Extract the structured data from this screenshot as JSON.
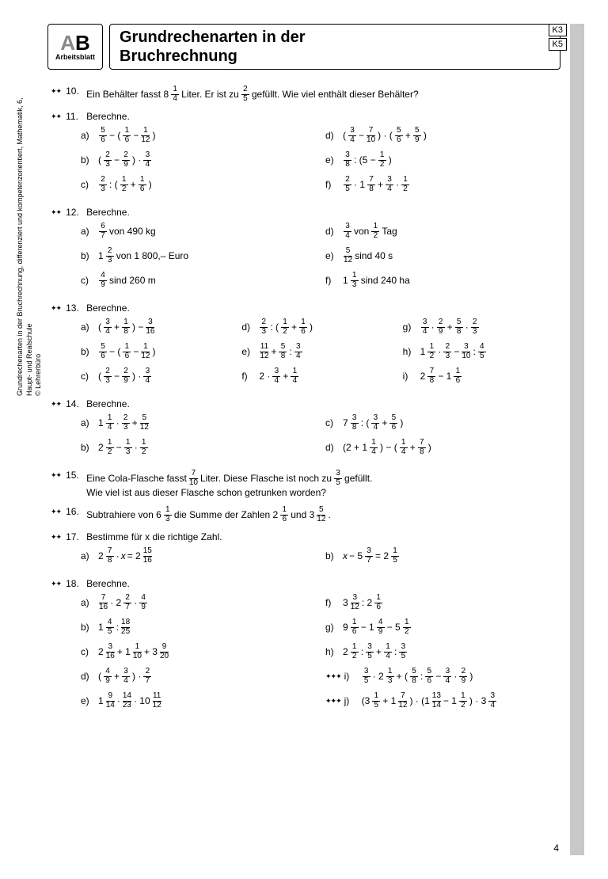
{
  "logo": {
    "ab": "AB",
    "sub": "Arbeitsblatt"
  },
  "title_l1": "Grundrechenarten in der",
  "title_l2": "Bruchrechnung",
  "k_labels": [
    "K3",
    "K5"
  ],
  "vertical_l1": "Grundrechenarten in der Bruchrechnung, differenziert und kompetenzorientiert, Mathematik, 6, Haupt- und Realschule",
  "vertical_l2": "© Lehrerbüro",
  "page_number": "4",
  "exercises": {
    "e10": {
      "num": "10.",
      "text_pre": "Ein Behälter fasst 8",
      "f1": [
        "1",
        "4"
      ],
      "text_mid": " Liter. Er ist zu ",
      "f2": [
        "2",
        "5"
      ],
      "text_post": " gefüllt. Wie viel enthält dieser Behälter?"
    },
    "e11": {
      "num": "11.",
      "title": "Berechne.",
      "items": [
        {
          "lbl": "a)",
          "html": "<span class='fr'><span class='n'>5</span><span class='d'>6</span></span> − ( <span class='fr'><span class='n'>1</span><span class='d'>6</span></span> − <span class='fr'><span class='n'>1</span><span class='d'>12</span></span> )"
        },
        {
          "lbl": "d)",
          "html": "( <span class='fr'><span class='n'>3</span><span class='d'>4</span></span> − <span class='fr'><span class='n'>7</span><span class='d'>10</span></span> ) · ( <span class='fr'><span class='n'>5</span><span class='d'>6</span></span> + <span class='fr'><span class='n'>5</span><span class='d'>9</span></span> )"
        },
        {
          "lbl": "b)",
          "html": "( <span class='fr'><span class='n'>2</span><span class='d'>3</span></span> − <span class='fr'><span class='n'>2</span><span class='d'>9</span></span> ) · <span class='fr'><span class='n'>3</span><span class='d'>4</span></span>"
        },
        {
          "lbl": "e)",
          "html": "<span class='fr'><span class='n'>3</span><span class='d'>8</span></span> : (5 − <span class='fr'><span class='n'>1</span><span class='d'>2</span></span> )"
        },
        {
          "lbl": "c)",
          "html": "<span class='fr'><span class='n'>2</span><span class='d'>3</span></span> : ( <span class='fr'><span class='n'>1</span><span class='d'>2</span></span> + <span class='fr'><span class='n'>1</span><span class='d'>6</span></span> )"
        },
        {
          "lbl": "f)",
          "html": "<span class='fr'><span class='n'>2</span><span class='d'>5</span></span> · 1<span class='fr'><span class='n'>7</span><span class='d'>8</span></span> + <span class='fr'><span class='n'>3</span><span class='d'>4</span></span> · <span class='fr'><span class='n'>1</span><span class='d'>2</span></span>"
        }
      ]
    },
    "e12": {
      "num": "12.",
      "title": "Berechne.",
      "items": [
        {
          "lbl": "a)",
          "html": "<span class='fr'><span class='n'>6</span><span class='d'>7</span></span> von 490 kg"
        },
        {
          "lbl": "d)",
          "html": "<span class='fr'><span class='n'>3</span><span class='d'>4</span></span> von <span class='fr'><span class='n'>1</span><span class='d'>2</span></span> Tag"
        },
        {
          "lbl": "b)",
          "html": "1<span class='fr'><span class='n'>2</span><span class='d'>3</span></span> von 1 800,– Euro"
        },
        {
          "lbl": "e)",
          "html": "<span class='fr'><span class='n'>5</span><span class='d'>12</span></span> sind 40 s"
        },
        {
          "lbl": "c)",
          "html": "<span class='fr'><span class='n'>4</span><span class='d'>9</span></span> sind 260 m"
        },
        {
          "lbl": "f)",
          "html": "1<span class='fr'><span class='n'>1</span><span class='d'>3</span></span> sind 240 ha"
        }
      ]
    },
    "e13": {
      "num": "13.",
      "title": "Berechne.",
      "items": [
        {
          "lbl": "a)",
          "html": "( <span class='fr'><span class='n'>3</span><span class='d'>4</span></span> + <span class='fr'><span class='n'>1</span><span class='d'>8</span></span> ) − <span class='fr'><span class='n'>3</span><span class='d'>16</span></span>"
        },
        {
          "lbl": "d)",
          "html": "<span class='fr'><span class='n'>2</span><span class='d'>3</span></span> : ( <span class='fr'><span class='n'>1</span><span class='d'>2</span></span> + <span class='fr'><span class='n'>1</span><span class='d'>6</span></span> )"
        },
        {
          "lbl": "g)",
          "html": "<span class='fr'><span class='n'>3</span><span class='d'>4</span></span> · <span class='fr'><span class='n'>2</span><span class='d'>9</span></span> + <span class='fr'><span class='n'>5</span><span class='d'>8</span></span> · <span class='fr'><span class='n'>2</span><span class='d'>3</span></span>"
        },
        {
          "lbl": "b)",
          "html": "<span class='fr'><span class='n'>5</span><span class='d'>6</span></span> − ( <span class='fr'><span class='n'>1</span><span class='d'>6</span></span> − <span class='fr'><span class='n'>1</span><span class='d'>12</span></span> )"
        },
        {
          "lbl": "e)",
          "html": "<span class='fr'><span class='n'>11</span><span class='d'>12</span></span> + <span class='fr'><span class='n'>5</span><span class='d'>8</span></span> : <span class='fr'><span class='n'>3</span><span class='d'>4</span></span>"
        },
        {
          "lbl": "h)",
          "html": "1<span class='fr'><span class='n'>1</span><span class='d'>2</span></span> · <span class='fr'><span class='n'>2</span><span class='d'>3</span></span> − <span class='fr'><span class='n'>3</span><span class='d'>10</span></span> : <span class='fr'><span class='n'>4</span><span class='d'>5</span></span>"
        },
        {
          "lbl": "c)",
          "html": "( <span class='fr'><span class='n'>2</span><span class='d'>3</span></span> − <span class='fr'><span class='n'>2</span><span class='d'>9</span></span> ) · <span class='fr'><span class='n'>3</span><span class='d'>4</span></span>"
        },
        {
          "lbl": "f)",
          "html": "2 · <span class='fr'><span class='n'>3</span><span class='d'>4</span></span> + <span class='fr'><span class='n'>1</span><span class='d'>4</span></span>"
        },
        {
          "lbl": "i)",
          "html": "2<span class='fr'><span class='n'>7</span><span class='d'>8</span></span> − 1<span class='fr'><span class='n'>1</span><span class='d'>6</span></span>"
        }
      ]
    },
    "e14": {
      "num": "14.",
      "title": "Berechne.",
      "items": [
        {
          "lbl": "a)",
          "html": "1<span class='fr'><span class='n'>1</span><span class='d'>4</span></span> · <span class='fr'><span class='n'>2</span><span class='d'>3</span></span> + <span class='fr'><span class='n'>5</span><span class='d'>12</span></span>"
        },
        {
          "lbl": "c)",
          "html": "7<span class='fr'><span class='n'>3</span><span class='d'>8</span></span> : ( <span class='fr'><span class='n'>3</span><span class='d'>4</span></span> + <span class='fr'><span class='n'>5</span><span class='d'>6</span></span> )"
        },
        {
          "lbl": "b)",
          "html": "2<span class='fr'><span class='n'>1</span><span class='d'>2</span></span> − <span class='fr'><span class='n'>1</span><span class='d'>3</span></span> · <span class='fr'><span class='n'>1</span><span class='d'>2</span></span>"
        },
        {
          "lbl": "d)",
          "html": "(2 + 1<span class='fr'><span class='n'>1</span><span class='d'>4</span></span> ) − ( <span class='fr'><span class='n'>1</span><span class='d'>4</span></span> + <span class='fr'><span class='n'>7</span><span class='d'>8</span></span> )"
        }
      ]
    },
    "e15": {
      "num": "15.",
      "text_pre": "Eine Cola-Flasche fasst ",
      "f1": [
        "7",
        "10"
      ],
      "text_mid": " Liter. Diese Flasche ist noch zu ",
      "f2": [
        "3",
        "5"
      ],
      "text_post": " gefüllt.",
      "line2": "Wie viel ist aus dieser Flasche schon getrunken worden?"
    },
    "e16": {
      "num": "16.",
      "text_pre": "Subtrahiere von 6",
      "f1": [
        "1",
        "3"
      ],
      "text_mid": " die Summe der Zahlen 2",
      "f2": [
        "1",
        "6"
      ],
      "text_mid2": " und 3",
      "f3": [
        "5",
        "12"
      ],
      "text_post": " ."
    },
    "e17": {
      "num": "17.",
      "title": "Bestimme für x die richtige Zahl.",
      "items": [
        {
          "lbl": "a)",
          "html": "2<span class='fr'><span class='n'>7</span><span class='d'>8</span></span> · <i>x</i> = 2<span class='fr'><span class='n'>15</span><span class='d'>16</span></span>"
        },
        {
          "lbl": "b)",
          "html": "<i>x</i> − 5<span class='fr'><span class='n'>3</span><span class='d'>7</span></span> = 2<span class='fr'><span class='n'>1</span><span class='d'>5</span></span>"
        }
      ]
    },
    "e18": {
      "num": "18.",
      "title": "Berechne.",
      "items": [
        {
          "lbl": "a)",
          "html": "<span class='fr'><span class='n'>7</span><span class='d'>16</span></span> · 2<span class='fr'><span class='n'>2</span><span class='d'>7</span></span> · <span class='fr'><span class='n'>4</span><span class='d'>9</span></span>"
        },
        {
          "lbl": "f)",
          "html": "3<span class='fr'><span class='n'>3</span><span class='d'>12</span></span> : 2<span class='fr'><span class='n'>1</span><span class='d'>6</span></span>"
        },
        {
          "lbl": "b)",
          "html": "1<span class='fr'><span class='n'>4</span><span class='d'>5</span></span> : <span class='fr'><span class='n'>18</span><span class='d'>25</span></span>"
        },
        {
          "lbl": "g)",
          "html": "9<span class='fr'><span class='n'>1</span><span class='d'>6</span></span> − 1<span class='fr'><span class='n'>4</span><span class='d'>9</span></span> − 5<span class='fr'><span class='n'>1</span><span class='d'>2</span></span>"
        },
        {
          "lbl": "c)",
          "html": "2<span class='fr'><span class='n'>3</span><span class='d'>16</span></span> + 1<span class='fr'><span class='n'>1</span><span class='d'>10</span></span> + 3<span class='fr'><span class='n'>9</span><span class='d'>20</span></span>"
        },
        {
          "lbl": "h)",
          "html": "2<span class='fr'><span class='n'>1</span><span class='d'>2</span></span> : <span class='fr'><span class='n'>3</span><span class='d'>5</span></span> + <span class='fr'><span class='n'>1</span><span class='d'>4</span></span> : <span class='fr'><span class='n'>3</span><span class='d'>5</span></span>"
        },
        {
          "lbl": "d)",
          "html": "( <span class='fr'><span class='n'>4</span><span class='d'>9</span></span> + <span class='fr'><span class='n'>3</span><span class='d'>4</span></span> ) · <span class='fr'><span class='n'>2</span><span class='d'>7</span></span>"
        },
        {
          "lbl": "i)",
          "hard": true,
          "html": "<span class='fr'><span class='n'>3</span><span class='d'>5</span></span> · 2<span class='fr'><span class='n'>1</span><span class='d'>3</span></span> + ( <span class='fr'><span class='n'>5</span><span class='d'>8</span></span> : <span class='fr'><span class='n'>5</span><span class='d'>6</span></span> − <span class='fr'><span class='n'>3</span><span class='d'>4</span></span> · <span class='fr'><span class='n'>2</span><span class='d'>9</span></span> )"
        },
        {
          "lbl": "e)",
          "html": "1<span class='fr'><span class='n'>9</span><span class='d'>14</span></span> · <span class='fr'><span class='n'>14</span><span class='d'>23</span></span> · 10<span class='fr'><span class='n'>11</span><span class='d'>12</span></span>"
        },
        {
          "lbl": "j)",
          "hard": true,
          "html": "(3<span class='fr'><span class='n'>1</span><span class='d'>5</span></span> + 1<span class='fr'><span class='n'>7</span><span class='d'>12</span></span> ) · (1<span class='fr'><span class='n'>13</span><span class='d'>14</span></span> − 1<span class='fr'><span class='n'>1</span><span class='d'>2</span></span> ) · 3<span class='fr'><span class='n'>3</span><span class='d'>4</span></span>"
        }
      ]
    }
  }
}
